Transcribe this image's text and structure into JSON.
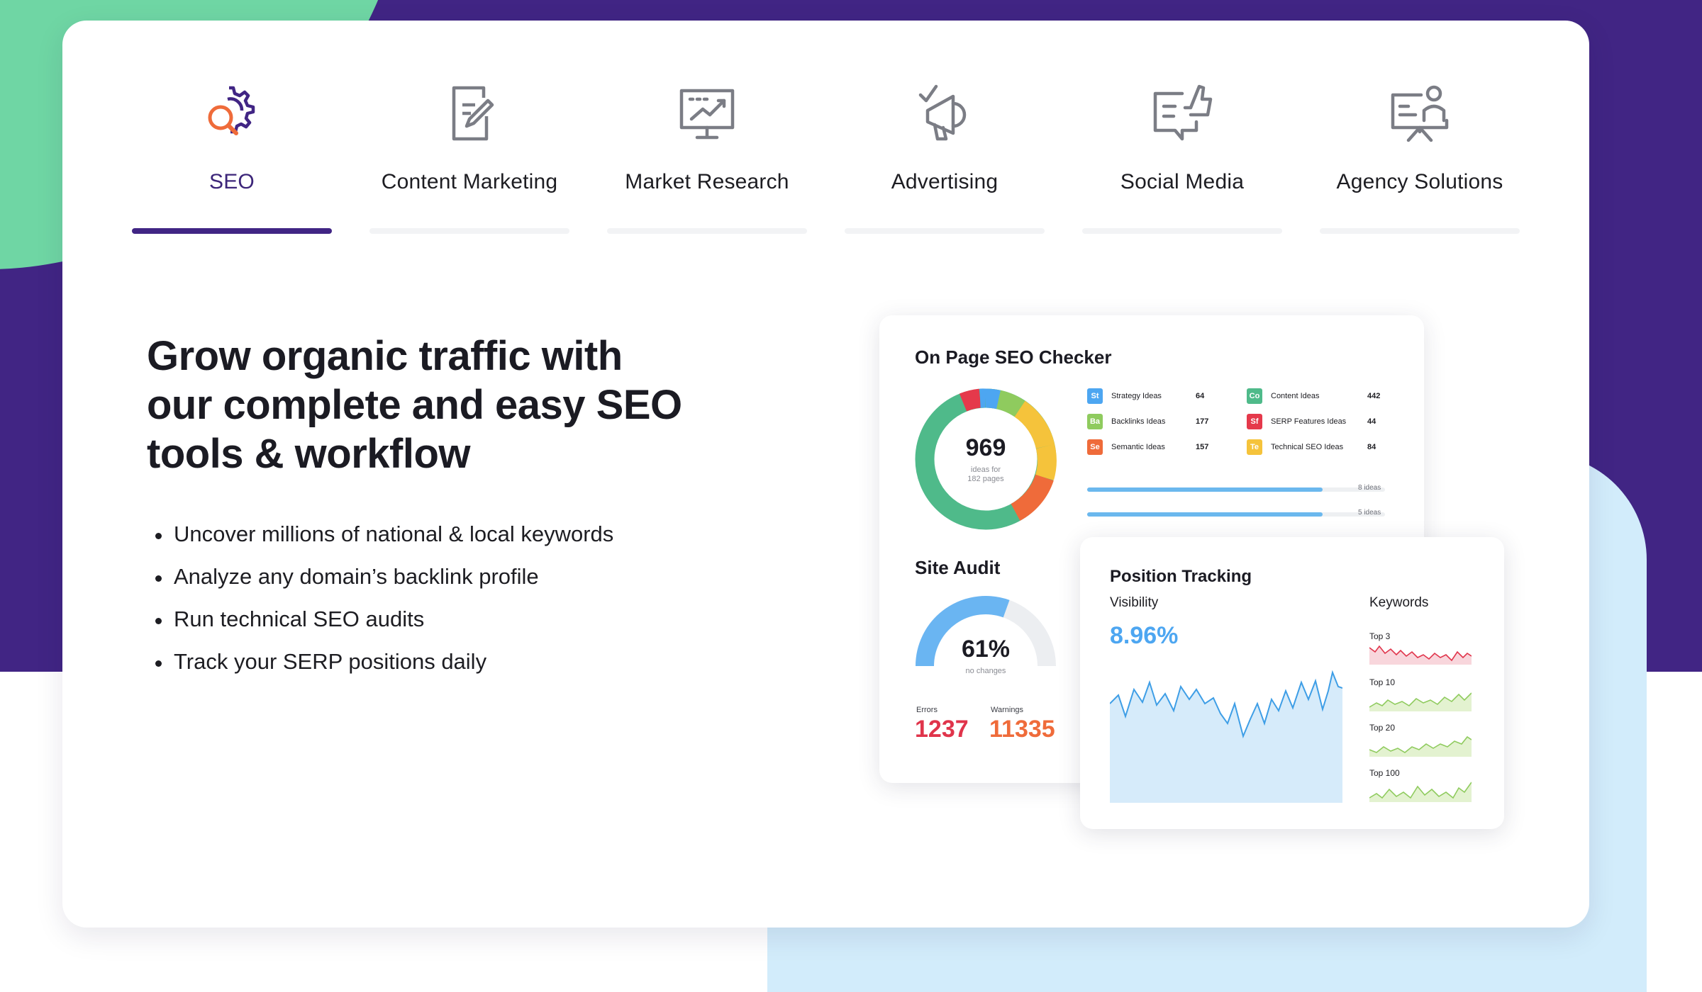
{
  "tabs": [
    {
      "label": "SEO",
      "icon": "seo-gear-magnifier-icon",
      "active": true
    },
    {
      "label": "Content Marketing",
      "icon": "edit-document-icon",
      "active": false
    },
    {
      "label": "Market Research",
      "icon": "presentation-chart-icon",
      "active": false
    },
    {
      "label": "Advertising",
      "icon": "megaphone-icon",
      "active": false
    },
    {
      "label": "Social Media",
      "icon": "thumbs-up-chat-icon",
      "active": false
    },
    {
      "label": "Agency Solutions",
      "icon": "presenter-board-icon",
      "active": false
    }
  ],
  "hero": {
    "headline_lines": [
      "Grow organic traffic with",
      "our complete and easy SEO",
      "tools & workflow"
    ],
    "bullets": [
      "Uncover millions of national & local keywords",
      "Analyze any domain’s backlink profile",
      "Run technical SEO audits",
      "Track your SERP positions daily"
    ]
  },
  "on_page": {
    "title": "On Page SEO Checker",
    "total": "969",
    "total_sub_1": "ideas for",
    "total_sub_2": "182 pages",
    "ideas": [
      {
        "abbr": "St",
        "label": "Strategy Ideas",
        "value": "64",
        "color": "#4da6f1"
      },
      {
        "abbr": "Ba",
        "label": "Backlinks Ideas",
        "value": "177",
        "color": "#8fcb5e"
      },
      {
        "abbr": "Se",
        "label": "Semantic Ideas",
        "value": "157",
        "color": "#ef6b3a"
      },
      {
        "abbr": "Co",
        "label": "Content Ideas",
        "value": "442",
        "color": "#4fba8a"
      },
      {
        "abbr": "Sf",
        "label": "SERP Features Ideas",
        "value": "44",
        "color": "#e5394b"
      },
      {
        "abbr": "Te",
        "label": "Technical SEO Ideas",
        "value": "84",
        "color": "#f5c33b"
      }
    ],
    "bars": [
      {
        "label": "8 ideas",
        "fill": 0.79
      },
      {
        "label": "5 ideas",
        "fill": 0.79
      }
    ],
    "donut_color": "#4fba8a"
  },
  "site_audit": {
    "title": "Site Audit",
    "percent": "61%",
    "percent_value": 0.61,
    "sub": "no changes",
    "errors_label": "Errors",
    "errors_value": "1237",
    "warnings_label": "Warnings",
    "warnings_value": "11335",
    "errors_color": "#e0344b",
    "warnings_color": "#ef6b3a"
  },
  "position_tracking": {
    "title": "Position Tracking",
    "visibility_label": "Visibility",
    "visibility_value": "8.96%",
    "keywords_label": "Keywords",
    "keyword_groups": [
      "Top 3",
      "Top 10",
      "Top 20",
      "Top 100"
    ],
    "visibility_color": "#4da6f1"
  },
  "colors": {
    "brand_purple": "#412584",
    "mint": "#6fd6a4",
    "light_blue": "#d2ecfb"
  }
}
